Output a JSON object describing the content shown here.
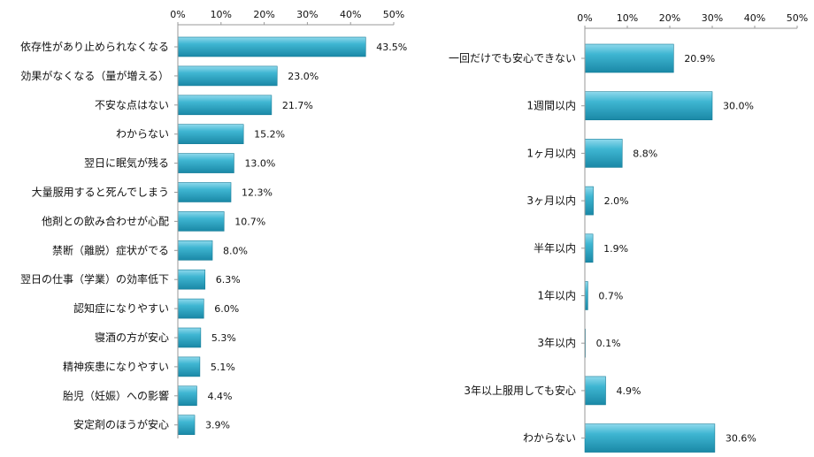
{
  "chart_data": [
    {
      "type": "bar",
      "orientation": "horizontal",
      "categories": [
        "依存性があり止められなくなる",
        "効果がなくなる（量が増える）",
        "不安な点はない",
        "わからない",
        "翌日に眠気が残る",
        "大量服用すると死んでしまう",
        "他剤との飲み合わせが心配",
        "禁断（離脱）症状がでる",
        "翌日の仕事（学業）の効率低下",
        "認知症になりやすい",
        "寝酒の方が安心",
        "精神疾患になりやすい",
        "胎児（妊娠）への影響",
        "安定剤のほうが安心"
      ],
      "values": [
        43.5,
        23.0,
        21.7,
        15.2,
        13.0,
        12.3,
        10.7,
        8.0,
        6.3,
        6.0,
        5.3,
        5.1,
        4.4,
        3.9
      ],
      "value_labels": [
        "43.5%",
        "23.0%",
        "21.7%",
        "15.2%",
        "13.0%",
        "12.3%",
        "10.7%",
        "8.0%",
        "6.3%",
        "6.0%",
        "5.3%",
        "5.1%",
        "4.4%",
        "3.9%"
      ],
      "x_ticks": [
        "0%",
        "10%",
        "20%",
        "30%",
        "40%",
        "50%"
      ],
      "xlim": [
        0,
        50
      ],
      "title": "",
      "xlabel": "",
      "ylabel": "",
      "grid": false,
      "axis_position": "top",
      "bar_color": "#2aa6c4"
    },
    {
      "type": "bar",
      "orientation": "horizontal",
      "categories": [
        "一回だけでも安心できない",
        "1週間以内",
        "1ヶ月以内",
        "3ヶ月以内",
        "半年以内",
        "1年以内",
        "3年以内",
        "3年以上服用しても安心",
        "わからない"
      ],
      "values": [
        20.9,
        30.0,
        8.8,
        2.0,
        1.9,
        0.7,
        0.1,
        4.9,
        30.6
      ],
      "value_labels": [
        "20.9%",
        "30.0%",
        "8.8%",
        "2.0%",
        "1.9%",
        "0.7%",
        "0.1%",
        "4.9%",
        "30.6%"
      ],
      "x_ticks": [
        "0%",
        "10%",
        "20%",
        "30%",
        "40%",
        "50%"
      ],
      "xlim": [
        0,
        50
      ],
      "title": "",
      "xlabel": "",
      "ylabel": "",
      "grid": false,
      "axis_position": "top",
      "bar_color": "#2aa6c4"
    }
  ]
}
